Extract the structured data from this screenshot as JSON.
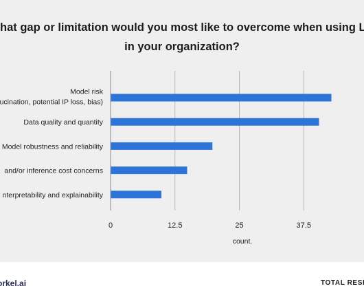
{
  "colors": {
    "panel_bg": "#efefef",
    "bar": "#2d74d8",
    "grid": "#b8b8b8",
    "baseline": "#9a9a9a",
    "text": "#1f1f1f"
  },
  "footer": {
    "brand": "orkel.ai",
    "responses_label": "TOTAL RESPO"
  },
  "chart_data": {
    "type": "bar",
    "orientation": "horizontal",
    "title_lines": [
      "hat gap or limitation would you most like to overcome when using LL",
      "in your organization?"
    ],
    "categories": [
      [
        "Model risk",
        "ucination, potential IP loss, bias)"
      ],
      [
        "Data quality and quantity"
      ],
      [
        "Model robustness and reliability"
      ],
      [
        "and/or inference cost concerns"
      ],
      [
        "nterpretability and explainability"
      ]
    ],
    "values": [
      42.8,
      40.4,
      19.7,
      14.8,
      9.8
    ],
    "xlim": [
      0,
      50
    ],
    "xticks": [
      0,
      12.5,
      25,
      37.5
    ],
    "xtick_labels": [
      "0",
      "12.5",
      "25",
      "37.5"
    ],
    "xlabel": "count.",
    "ylabel": "",
    "grid": true
  }
}
